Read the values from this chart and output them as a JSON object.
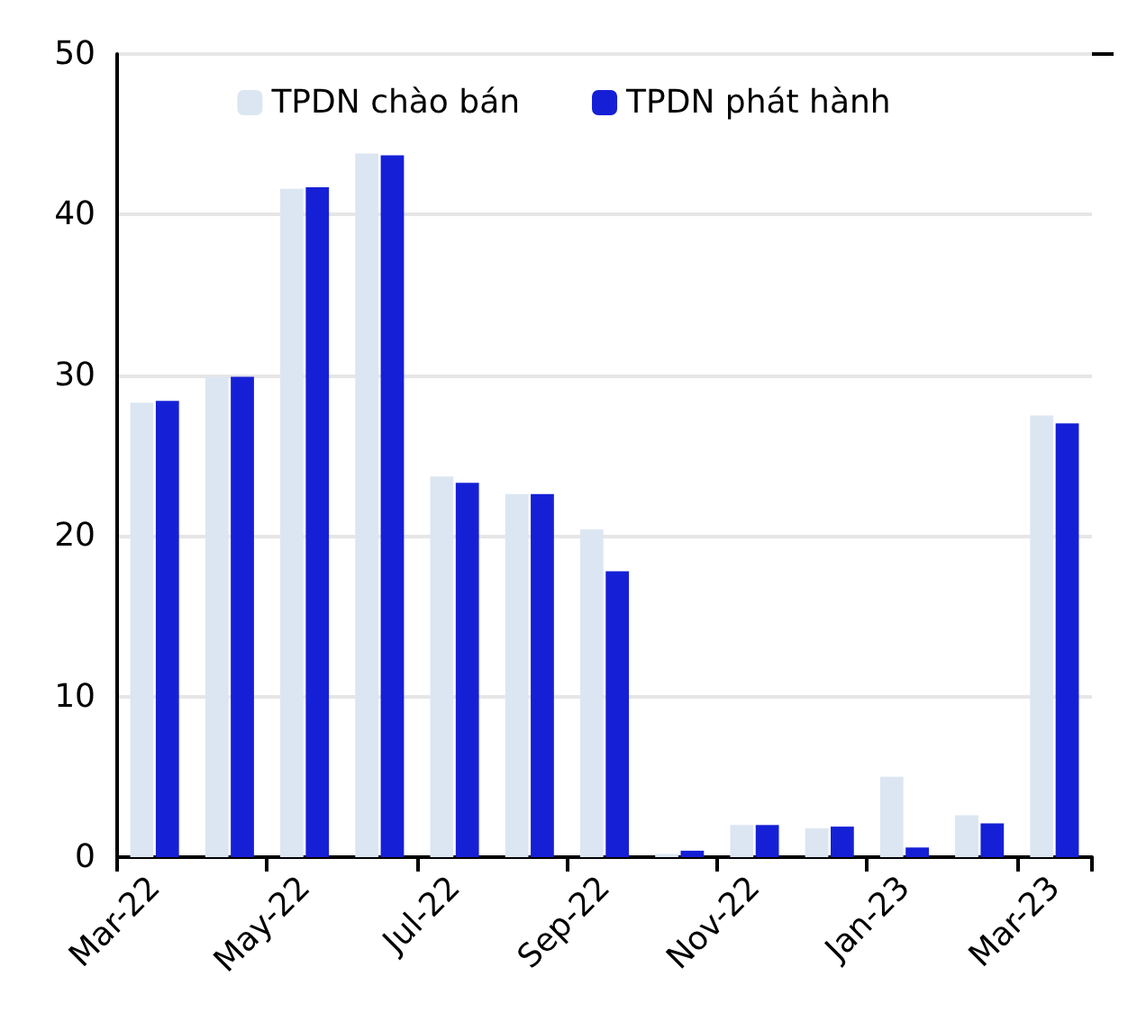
{
  "chart_data": {
    "type": "bar",
    "categories": [
      "Mar-22",
      null,
      "May-22",
      null,
      "Jul-22",
      null,
      "Sep-22",
      null,
      "Nov-22",
      null,
      "Jan-23",
      null,
      "Mar-23"
    ],
    "series": [
      {
        "name": "TPDN chào bán",
        "color": "#dce6f2",
        "values": [
          28.3,
          29.9,
          41.6,
          43.8,
          23.7,
          22.6,
          20.4,
          0.2,
          2.0,
          1.8,
          5.0,
          2.6,
          27.5
        ]
      },
      {
        "name": "TPDN phát hành",
        "color": "#1520d6",
        "values": [
          28.4,
          29.9,
          41.7,
          43.7,
          23.3,
          22.6,
          17.8,
          0.4,
          2.0,
          1.9,
          0.6,
          2.1,
          27.0
        ]
      }
    ],
    "ylim": [
      0,
      50
    ],
    "yticks": [
      0,
      10,
      20,
      30,
      40,
      50
    ],
    "grid": "y",
    "legend": "top"
  }
}
